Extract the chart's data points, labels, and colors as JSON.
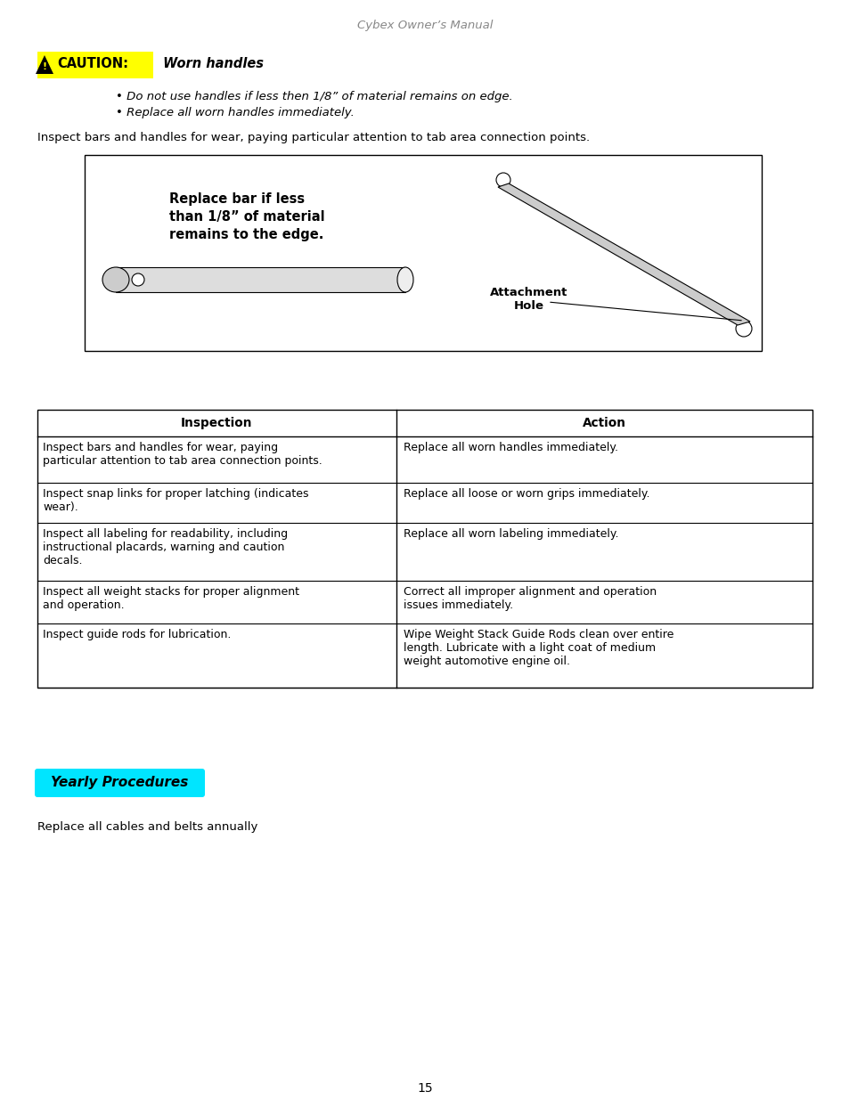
{
  "header_text": "Cybex Owner’s Manual",
  "caution_label": "CAUTION:",
  "caution_title": " Worn handles",
  "caution_bullets": [
    "Do not use handles if less then 1/8” of material remains on edge.",
    "Replace all worn handles immediately."
  ],
  "inspect_intro": "Inspect bars and handles for wear, paying particular attention to tab area connection points.",
  "diagram_box_text1": "Replace bar if less",
  "diagram_box_text2": "than 1/8” of material",
  "diagram_box_text3": "remains to the edge.",
  "diagram_label1": "Attachment",
  "diagram_label2": "Hole",
  "table_headers": [
    "Inspection",
    "Action"
  ],
  "table_rows": [
    [
      "Inspect bars and handles for wear, paying\nparticular attention to tab area connection points.",
      "Replace all worn handles immediately."
    ],
    [
      "Inspect snap links for proper latching (indicates\nwear).",
      "Replace all loose or worn grips immediately."
    ],
    [
      "Inspect all labeling for readability, including\ninstructional placards, warning and caution\ndecals.",
      "Replace all worn labeling immediately."
    ],
    [
      "Inspect all weight stacks for proper alignment\nand operation.",
      "Correct all improper alignment and operation\nissues immediately."
    ],
    [
      "Inspect guide rods for lubrication.",
      "Wipe Weight Stack Guide Rods clean over entire\nlength. Lubricate with a light coat of medium\nweight automotive engine oil."
    ]
  ],
  "yearly_label": "Yearly Procedures",
  "yearly_text": "Replace all cables and belts annually",
  "page_number": "15",
  "bg_color": "#ffffff",
  "caution_bg": "#ffff00",
  "table_header_bg": "#ffffff",
  "yearly_bg": "#00e5ff"
}
